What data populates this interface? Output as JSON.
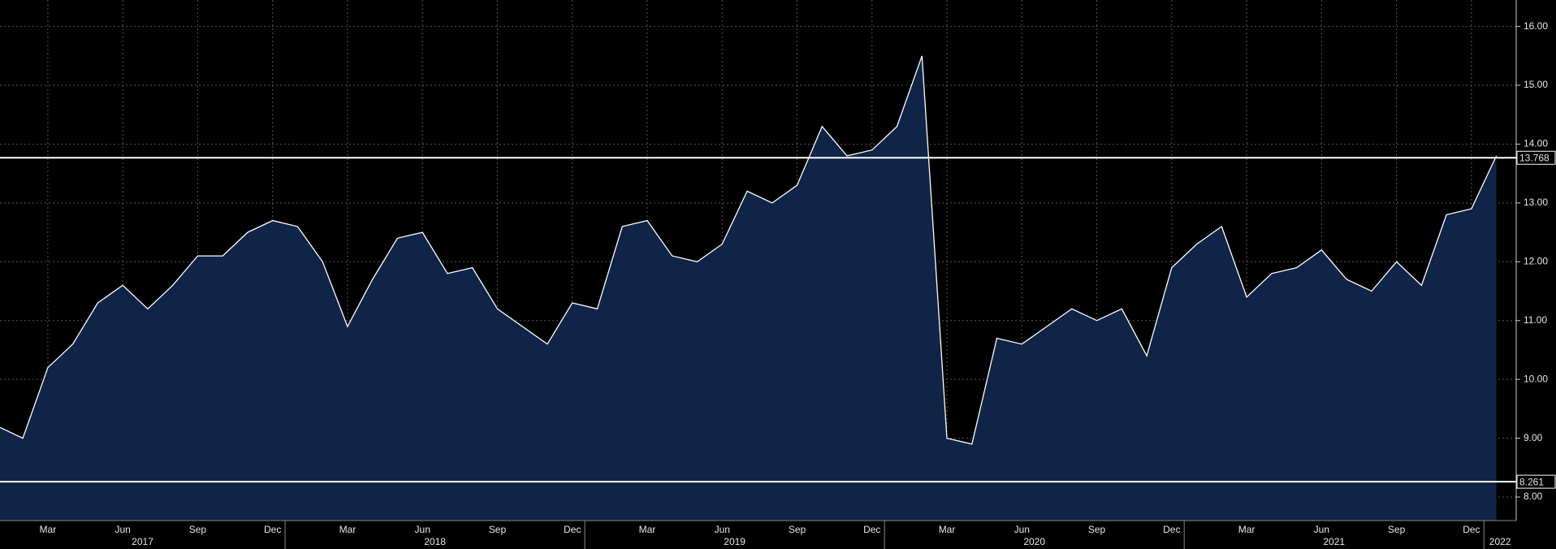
{
  "chart_data": {
    "type": "area",
    "x": [
      "2017-01",
      "2017-02",
      "2017-03",
      "2017-04",
      "2017-05",
      "2017-06",
      "2017-07",
      "2017-08",
      "2017-09",
      "2017-10",
      "2017-11",
      "2017-12",
      "2018-01",
      "2018-02",
      "2018-03",
      "2018-04",
      "2018-05",
      "2018-06",
      "2018-07",
      "2018-08",
      "2018-09",
      "2018-10",
      "2018-11",
      "2018-12",
      "2019-01",
      "2019-02",
      "2019-03",
      "2019-04",
      "2019-05",
      "2019-06",
      "2019-07",
      "2019-08",
      "2019-09",
      "2019-10",
      "2019-11",
      "2019-12",
      "2020-01",
      "2020-02",
      "2020-03",
      "2020-04",
      "2020-05",
      "2020-06",
      "2020-07",
      "2020-08",
      "2020-09",
      "2020-10",
      "2020-11",
      "2020-12",
      "2021-01",
      "2021-02",
      "2021-03",
      "2021-04",
      "2021-05",
      "2021-06",
      "2021-07",
      "2021-08",
      "2021-09",
      "2021-10",
      "2021-11",
      "2021-12",
      "2022-01"
    ],
    "values": [
      9.2,
      9.0,
      10.2,
      10.6,
      11.3,
      11.6,
      11.2,
      11.6,
      12.1,
      12.1,
      12.5,
      12.7,
      12.6,
      12.0,
      10.9,
      11.7,
      12.4,
      12.5,
      11.8,
      11.9,
      11.2,
      10.9,
      10.6,
      11.3,
      11.2,
      12.6,
      12.7,
      12.1,
      12.0,
      12.3,
      13.2,
      13.0,
      13.3,
      14.3,
      13.8,
      13.9,
      14.3,
      15.5,
      9.0,
      8.9,
      10.7,
      10.6,
      10.9,
      11.2,
      11.0,
      11.2,
      10.4,
      11.9,
      12.3,
      12.6,
      11.4,
      11.8,
      11.9,
      12.2,
      11.7,
      11.5,
      12.0,
      11.6,
      12.8,
      12.9,
      13.8
    ],
    "color": "#ffffff",
    "fill_color": "#0f2447",
    "xlim": [
      "2017-01",
      "2022-02"
    ],
    "ylim": [
      7.6,
      16.45
    ],
    "yticks": [
      {
        "value": 8,
        "label": "8.00"
      },
      {
        "value": 9,
        "label": "9.00"
      },
      {
        "value": 10,
        "label": "10.00"
      },
      {
        "value": 11,
        "label": "11.00"
      },
      {
        "value": 12,
        "label": "12.00"
      },
      {
        "value": 13,
        "label": "13.00"
      },
      {
        "value": 14,
        "label": "14.00"
      },
      {
        "value": 15,
        "label": "15.00"
      },
      {
        "value": 16,
        "label": "16.00"
      }
    ],
    "xticks": [
      {
        "value": "2017-03",
        "label": "Mar"
      },
      {
        "value": "2017-06",
        "label": "Jun"
      },
      {
        "value": "2017-09",
        "label": "Sep"
      },
      {
        "value": "2017-12",
        "label": "Dec"
      },
      {
        "value": "2018-03",
        "label": "Mar"
      },
      {
        "value": "2018-06",
        "label": "Jun"
      },
      {
        "value": "2018-09",
        "label": "Sep"
      },
      {
        "value": "2018-12",
        "label": "Dec"
      },
      {
        "value": "2019-03",
        "label": "Mar"
      },
      {
        "value": "2019-06",
        "label": "Jun"
      },
      {
        "value": "2019-09",
        "label": "Sep"
      },
      {
        "value": "2019-12",
        "label": "Dec"
      },
      {
        "value": "2020-03",
        "label": "Mar"
      },
      {
        "value": "2020-06",
        "label": "Jun"
      },
      {
        "value": "2020-09",
        "label": "Sep"
      },
      {
        "value": "2020-12",
        "label": "Dec"
      },
      {
        "value": "2021-03",
        "label": "Mar"
      },
      {
        "value": "2021-06",
        "label": "Jun"
      },
      {
        "value": "2021-09",
        "label": "Sep"
      },
      {
        "value": "2021-12",
        "label": "Dec"
      }
    ],
    "years": [
      "2017",
      "2018",
      "2019",
      "2020",
      "2021",
      "2022"
    ],
    "hlines": [
      13.768,
      8.261
    ],
    "grid": true
  }
}
